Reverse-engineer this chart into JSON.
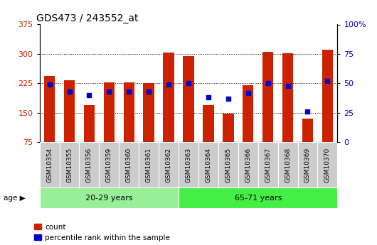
{
  "title": "GDS473 / 243552_at",
  "samples": [
    "GSM10354",
    "GSM10355",
    "GSM10356",
    "GSM10359",
    "GSM10360",
    "GSM10361",
    "GSM10362",
    "GSM10363",
    "GSM10364",
    "GSM10365",
    "GSM10366",
    "GSM10367",
    "GSM10368",
    "GSM10369",
    "GSM10370"
  ],
  "counts": [
    243,
    232,
    170,
    227,
    228,
    226,
    304,
    295,
    170,
    147,
    220,
    305,
    302,
    135,
    311
  ],
  "percentiles": [
    49,
    43,
    40,
    43,
    43,
    43,
    49,
    50,
    38,
    37,
    42,
    50,
    48,
    26,
    52
  ],
  "group1_label": "20-29 years",
  "group1_count": 7,
  "group2_label": "65-71 years",
  "group2_count": 8,
  "ymin": 75,
  "ymax": 375,
  "yticks": [
    75,
    150,
    225,
    300,
    375
  ],
  "right_yticks": [
    0,
    25,
    50,
    75,
    100
  ],
  "bar_color": "#CC2200",
  "marker_color": "#0000CC",
  "group1_bg": "#99EE99",
  "group2_bg": "#44EE44",
  "sample_label_bg": "#CCCCCC",
  "plot_bg": "#FFFFFF",
  "legend_count_label": "count",
  "legend_pct_label": "percentile rank within the sample",
  "bar_width": 0.55
}
